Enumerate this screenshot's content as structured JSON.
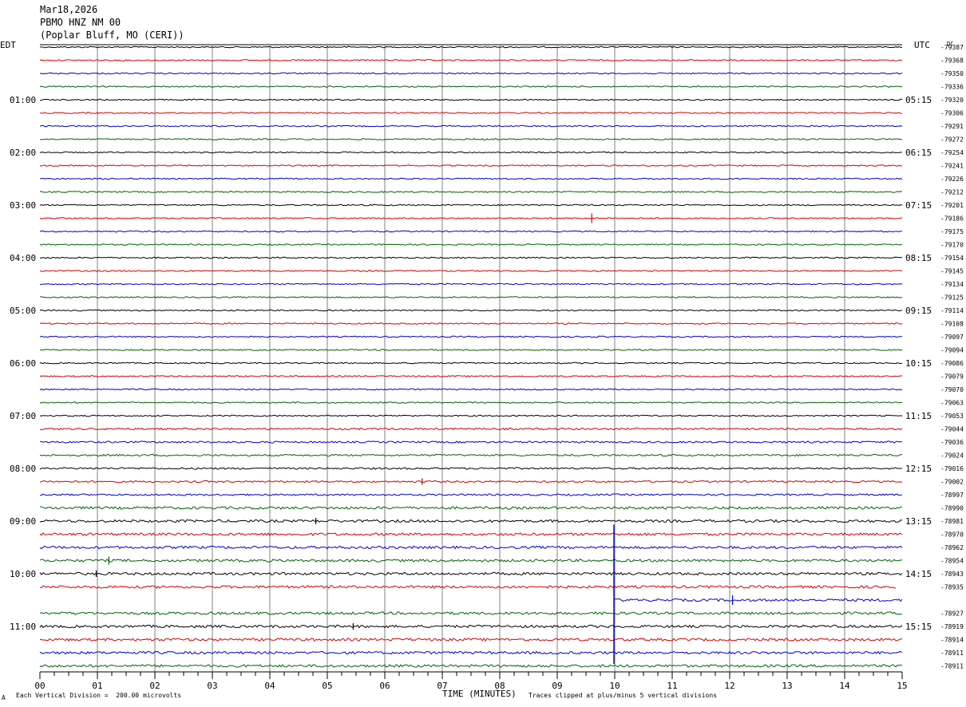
{
  "header": {
    "date": "Mar18,2026",
    "station": "PBMO HNZ NM 00",
    "location": "(Poplar Bluff, MO (CERI))"
  },
  "left_tz": "EDT",
  "right_tz": "UTC",
  "dc_label": "DC",
  "footer": {
    "scale": "Each Vertical Division =  200.00 microvolts",
    "xlabel": "TIME (MINUTES)",
    "clip": "Traces clipped at plus/minus 5 vertical divisions",
    "corner": "A"
  },
  "colors": {
    "trace_cycle": [
      "#000000",
      "#d40000",
      "#0000c8",
      "#006400"
    ],
    "grid": "#808080"
  },
  "chart_data": {
    "type": "line",
    "title": "",
    "xlabel": "TIME (MINUTES)",
    "xlim": [
      0,
      15
    ],
    "x_ticks": [
      "00",
      "01",
      "02",
      "03",
      "04",
      "05",
      "06",
      "07",
      "08",
      "09",
      "10",
      "11",
      "12",
      "13",
      "14",
      "15"
    ],
    "trace_count": 48,
    "left_hour_labels": [
      {
        "trace": 4,
        "label": "01:00"
      },
      {
        "trace": 8,
        "label": "02:00"
      },
      {
        "trace": 12,
        "label": "03:00"
      },
      {
        "trace": 16,
        "label": "04:00"
      },
      {
        "trace": 20,
        "label": "05:00"
      },
      {
        "trace": 24,
        "label": "06:00"
      },
      {
        "trace": 28,
        "label": "07:00"
      },
      {
        "trace": 32,
        "label": "08:00"
      },
      {
        "trace": 36,
        "label": "09:00"
      },
      {
        "trace": 40,
        "label": "10:00"
      },
      {
        "trace": 44,
        "label": "11:00"
      }
    ],
    "right_hour_labels": [
      {
        "trace": 4,
        "label": "05:15"
      },
      {
        "trace": 8,
        "label": "06:15"
      },
      {
        "trace": 12,
        "label": "07:15"
      },
      {
        "trace": 16,
        "label": "08:15"
      },
      {
        "trace": 20,
        "label": "09:15"
      },
      {
        "trace": 24,
        "label": "10:15"
      },
      {
        "trace": 28,
        "label": "11:15"
      },
      {
        "trace": 32,
        "label": "12:15"
      },
      {
        "trace": 36,
        "label": "13:15"
      },
      {
        "trace": 40,
        "label": "14:15"
      },
      {
        "trace": 44,
        "label": "15:15"
      }
    ],
    "dc_offsets": [
      "-79387",
      "-79368",
      "-79350",
      "-79336",
      "-79320",
      "-79306",
      "-79291",
      "-79272",
      "-79254",
      "-79241",
      "-79226",
      "-79212",
      "-79201",
      "-79186",
      "-79175",
      "-79170",
      "-79154",
      "-79145",
      "-79134",
      "-79125",
      "-79114",
      "-79108",
      "-79097",
      "-79094",
      "-79086",
      "-79079",
      "-79070",
      "-79063",
      "-79053",
      "-79044",
      "-79036",
      "-79024",
      "-79016",
      "-79002",
      "-78997",
      "-78990",
      "-78981",
      "-78970",
      "-78962",
      "-78954",
      "-78943",
      "-78935",
      "",
      "-78927",
      "-78919",
      "-78914",
      "-78911",
      "-78911"
    ]
  }
}
